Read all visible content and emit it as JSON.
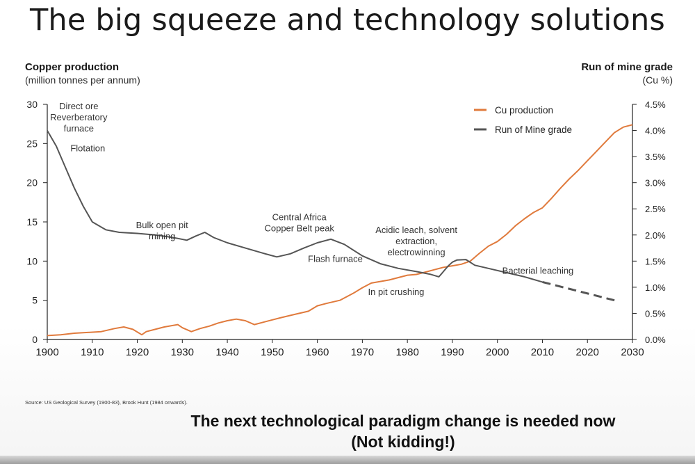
{
  "slide": {
    "title": "The big squeeze and technology solutions",
    "source": "Source: US Geological Survey (1900-83), Brook Hunt (1984 onwards).",
    "footer_line1": "The next technological paradigm change is needed now",
    "footer_line2": "(Not kidding!)"
  },
  "chart_data": {
    "type": "line",
    "title": "",
    "left_axis": {
      "title": "Copper production",
      "unit": "(million tonnes per annum)",
      "range": [
        0,
        30
      ],
      "ticks": [
        "0",
        "5",
        "10",
        "15",
        "20",
        "25",
        "30"
      ]
    },
    "right_axis": {
      "title": "Run of mine grade",
      "unit": "(Cu %)",
      "range": [
        0,
        4.5
      ],
      "ticks": [
        "0.0%",
        "0.5%",
        "1.0%",
        "1.5%",
        "2.0%",
        "2.5%",
        "3.0%",
        "3.5%",
        "4.0%",
        "4.5%"
      ]
    },
    "x_axis": {
      "range": [
        1900,
        2030
      ],
      "ticks": [
        "1900",
        "1910",
        "1920",
        "1930",
        "1940",
        "1950",
        "1960",
        "1970",
        "1980",
        "1990",
        "2000",
        "2010",
        "2020",
        "2030"
      ]
    },
    "grid": false,
    "legend_position": "top-right",
    "series": [
      {
        "name": "Cu production",
        "axis": "left",
        "color": "#e07a3c",
        "x": [
          1900,
          1903,
          1906,
          1909,
          1912,
          1915,
          1917,
          1919,
          1921,
          1922,
          1924,
          1926,
          1929,
          1930,
          1932,
          1934,
          1936,
          1938,
          1940,
          1942,
          1944,
          1946,
          1948,
          1950,
          1952,
          1955,
          1958,
          1960,
          1962,
          1965,
          1968,
          1970,
          1972,
          1974,
          1976,
          1978,
          1980,
          1982,
          1984,
          1986,
          1988,
          1990,
          1992,
          1994,
          1996,
          1998,
          2000,
          2002,
          2004,
          2006,
          2008,
          2010,
          2012,
          2014,
          2016,
          2018,
          2020,
          2022,
          2024,
          2026,
          2028,
          2030
        ],
        "y": [
          0.5,
          0.6,
          0.8,
          0.9,
          1.0,
          1.4,
          1.6,
          1.3,
          0.6,
          1.0,
          1.3,
          1.6,
          1.9,
          1.5,
          1.0,
          1.4,
          1.7,
          2.1,
          2.4,
          2.6,
          2.4,
          1.9,
          2.2,
          2.5,
          2.8,
          3.2,
          3.6,
          4.3,
          4.6,
          5.0,
          5.9,
          6.6,
          7.2,
          7.4,
          7.6,
          7.9,
          8.2,
          8.3,
          8.6,
          8.9,
          9.2,
          9.4,
          9.6,
          10.0,
          11.0,
          11.9,
          12.5,
          13.4,
          14.5,
          15.4,
          16.2,
          16.8,
          18.0,
          19.3,
          20.5,
          21.6,
          22.8,
          24.0,
          25.2,
          26.4,
          27.1,
          27.4
        ]
      },
      {
        "name": "Run of Mine grade",
        "axis": "right",
        "color": "#555555",
        "x": [
          1900,
          1902,
          1904,
          1906,
          1908,
          1910,
          1913,
          1916,
          1920,
          1924,
          1928,
          1931,
          1933,
          1935,
          1937,
          1940,
          1944,
          1948,
          1951,
          1954,
          1957,
          1960,
          1963,
          1966,
          1970,
          1974,
          1978,
          1982,
          1985,
          1987,
          1988,
          1989,
          1990,
          1991,
          1993,
          1995,
          1998,
          2002,
          2006,
          2010
        ],
        "y": [
          4.0,
          3.7,
          3.3,
          2.9,
          2.55,
          2.25,
          2.1,
          2.05,
          2.03,
          2.0,
          1.95,
          1.9,
          1.98,
          2.05,
          1.95,
          1.85,
          1.75,
          1.65,
          1.58,
          1.64,
          1.75,
          1.85,
          1.92,
          1.82,
          1.6,
          1.45,
          1.36,
          1.3,
          1.25,
          1.2,
          1.3,
          1.4,
          1.48,
          1.52,
          1.53,
          1.42,
          1.36,
          1.28,
          1.2,
          1.1
        ]
      },
      {
        "name": "",
        "axis": "right",
        "color": "#555555",
        "dashed": true,
        "x": [
          2010,
          2026
        ],
        "y": [
          1.1,
          0.75
        ]
      }
    ],
    "annotations": [
      {
        "text": [
          "Direct ore",
          "Reverberatory",
          "furnace"
        ],
        "x": 1907,
        "y": 29.4
      },
      {
        "text": [
          "Flotation"
        ],
        "x": 1909,
        "y": 24.0
      },
      {
        "text": [
          "Bulk open pit",
          "mining"
        ],
        "x": 1925.5,
        "y": 14.2
      },
      {
        "text": [
          "Central Africa",
          "Copper Belt peak"
        ],
        "x": 1956,
        "y": 15.2
      },
      {
        "text": [
          "Flash furnace"
        ],
        "x": 1964,
        "y": 9.9
      },
      {
        "text": [
          "Acidic leach, solvent",
          "extraction,",
          "electrowinning"
        ],
        "x": 1982,
        "y": 13.6
      },
      {
        "text": [
          "Bacterial leaching"
        ],
        "x": 2009,
        "y": 8.4
      },
      {
        "text": [
          "In pit crushing"
        ],
        "x": 1977.5,
        "y": 5.7
      }
    ]
  }
}
